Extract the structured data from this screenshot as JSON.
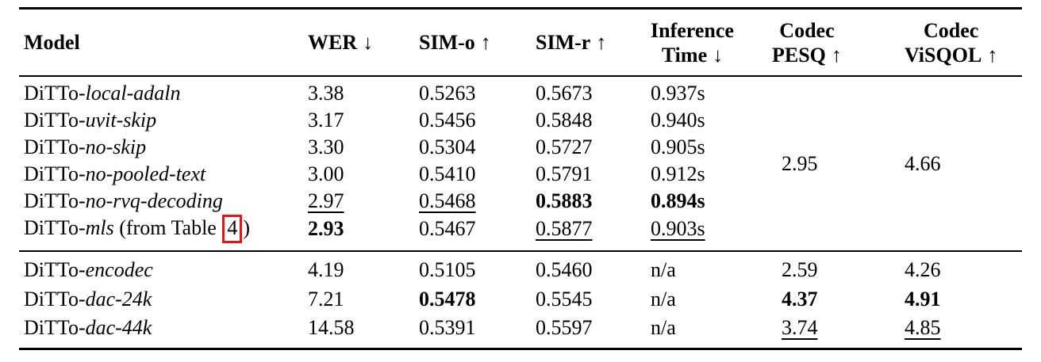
{
  "page": {
    "background_color": "#ffffff",
    "text_color": "#000000",
    "reference_box_color": "#ee1111"
  },
  "table": {
    "headers": {
      "model": "Model",
      "wer": {
        "label": "WER",
        "arrow": "↓"
      },
      "sim_o": {
        "label": "SIM-o",
        "arrow": "↑"
      },
      "sim_r": {
        "label": "SIM-r",
        "arrow": "↑"
      },
      "inference_time": {
        "line1": "Inference",
        "line2": "Time",
        "arrow": "↓"
      },
      "codec_pesq": {
        "line1": "Codec",
        "line2": "PESQ",
        "arrow": "↑"
      },
      "codec_visqol": {
        "line1": "Codec",
        "line2": "ViSQOL",
        "arrow": "↑"
      }
    },
    "ablation_group": {
      "rows": [
        {
          "model": {
            "prefix": "DiTTo-",
            "variant": "local-adaln"
          },
          "wer": "3.38",
          "sim_o": "0.5263",
          "sim_r": "0.5673",
          "inference_time": "0.937s"
        },
        {
          "model": {
            "prefix": "DiTTo-",
            "variant": "uvit-skip"
          },
          "wer": "3.17",
          "sim_o": "0.5456",
          "sim_r": "0.5848",
          "inference_time": "0.940s"
        },
        {
          "model": {
            "prefix": "DiTTo-",
            "variant": "no-skip"
          },
          "wer": "3.30",
          "sim_o": "0.5304",
          "sim_r": "0.5727",
          "inference_time": "0.905s"
        },
        {
          "model": {
            "prefix": "DiTTo-",
            "variant": "no-pooled-text"
          },
          "wer": "3.00",
          "sim_o": "0.5410",
          "sim_r": "0.5791",
          "inference_time": "0.912s"
        },
        {
          "model": {
            "prefix": "DiTTo-",
            "variant": "no-rvq-decoding"
          },
          "wer": "2.97",
          "sim_o": "0.5468",
          "sim_r": "0.5883",
          "inference_time": "0.894s"
        },
        {
          "model": {
            "prefix": "DiTTo-",
            "variant": "mls",
            "suffix_pre": " (from Table ",
            "table_ref": "4",
            "suffix_post": ")"
          },
          "wer": "2.93",
          "sim_o": "0.5467",
          "sim_r": "0.5877",
          "inference_time": "0.903s"
        }
      ],
      "codec_pesq": "2.95",
      "codec_visqol": "4.66"
    },
    "codec_group": {
      "rows": [
        {
          "model": {
            "prefix": "DiTTo-",
            "variant": "encodec"
          },
          "wer": "4.19",
          "sim_o": "0.5105",
          "sim_r": "0.5460",
          "inference_time": "n/a",
          "codec_pesq": "2.59",
          "codec_visqol": "4.26"
        },
        {
          "model": {
            "prefix": "DiTTo-",
            "variant": "dac-24k"
          },
          "wer": "7.21",
          "sim_o": "0.5478",
          "sim_r": "0.5545",
          "inference_time": "n/a",
          "codec_pesq": "4.37",
          "codec_visqol": "4.91"
        },
        {
          "model": {
            "prefix": "DiTTo-",
            "variant": "dac-44k"
          },
          "wer": "14.58",
          "sim_o": "0.5391",
          "sim_r": "0.5597",
          "inference_time": "n/a",
          "codec_pesq": "3.74",
          "codec_visqol": "4.85"
        }
      ]
    }
  }
}
